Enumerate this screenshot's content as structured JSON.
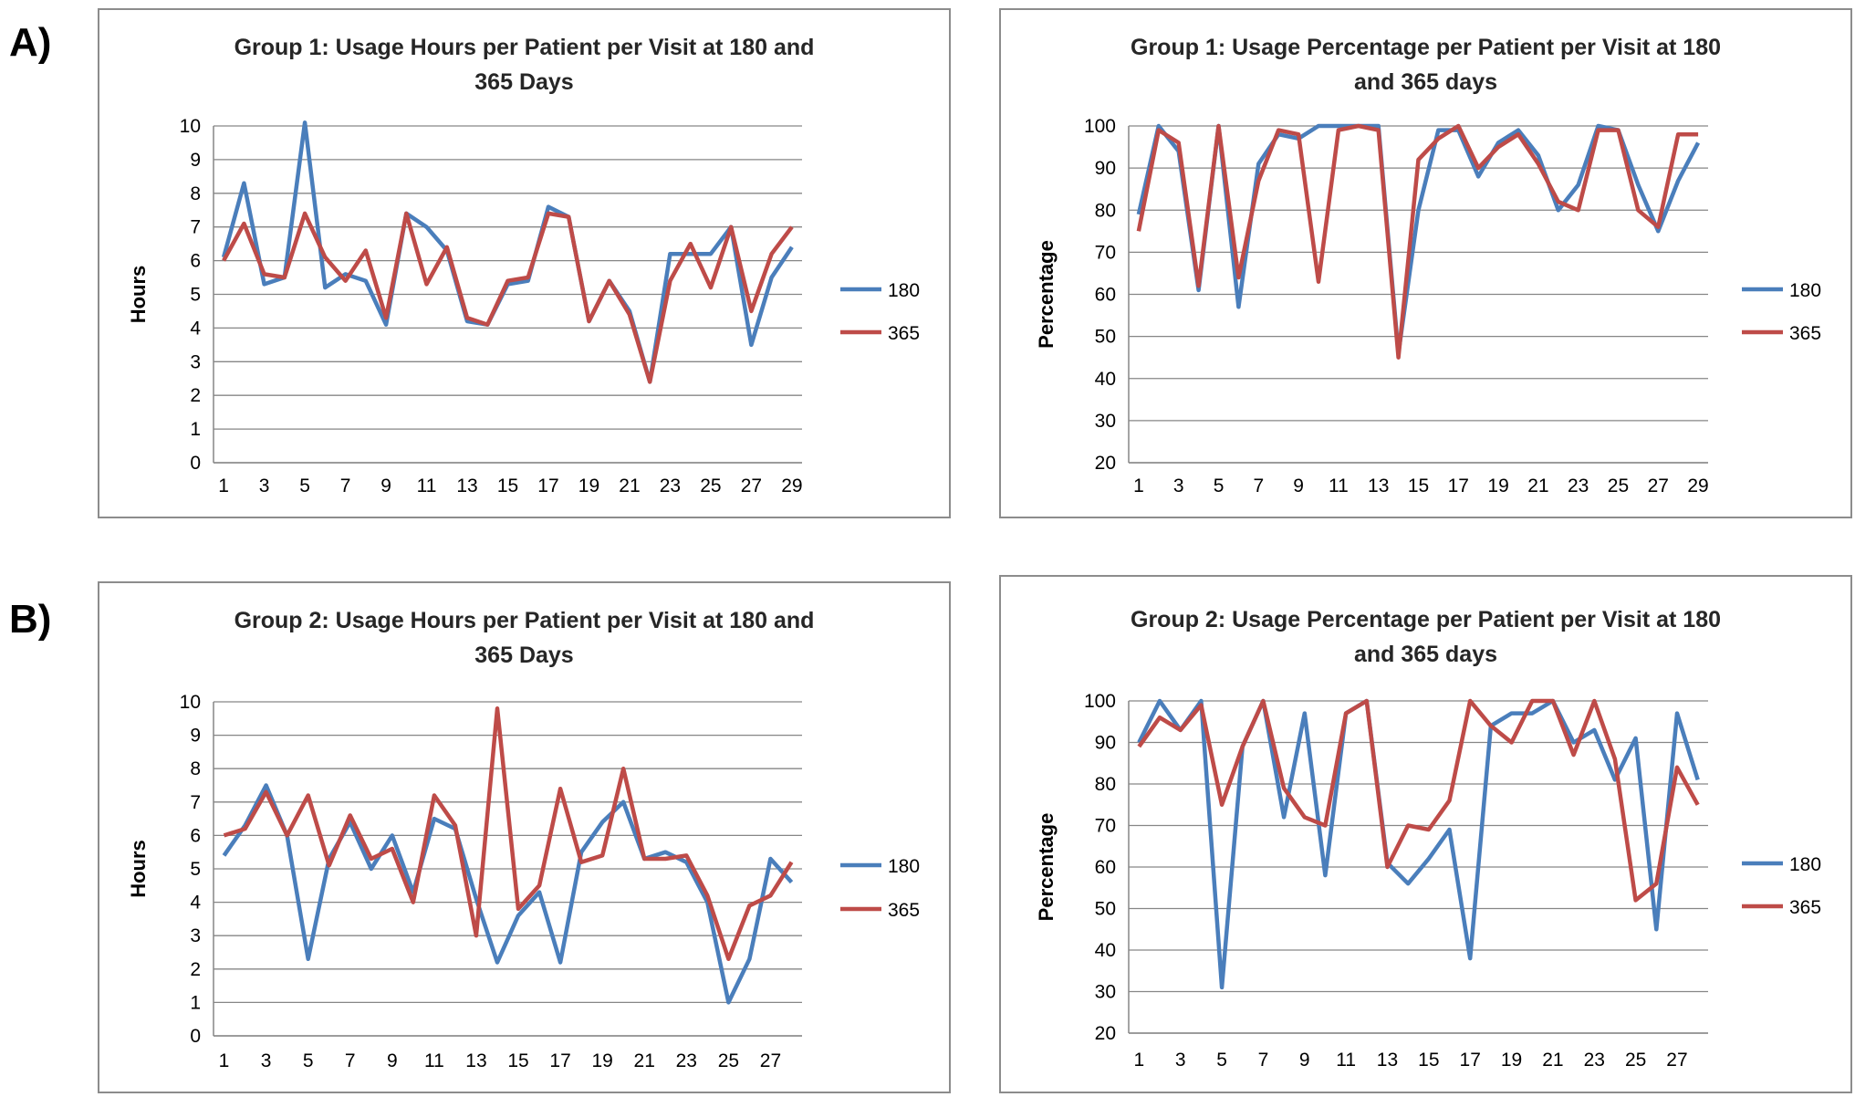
{
  "panel_labels": {
    "a": "A)",
    "b": "B)"
  },
  "colors": {
    "s180": "#4a7ebb",
    "s365": "#be4b48",
    "grid": "#868686"
  },
  "charts": {
    "g1_hours": {
      "title": "Group 1: Usage Hours per Patient per Visit at 180 and\n365 Days",
      "chart_data": {
        "type": "line",
        "title": "Group 1: Usage Hours per Patient per Visit at 180 and 365 Days",
        "ylabel": "Hours",
        "xlabel": "",
        "ylim": [
          0,
          10
        ],
        "yticks": [
          0,
          1,
          2,
          3,
          4,
          5,
          6,
          7,
          8,
          9,
          10
        ],
        "x": [
          1,
          2,
          3,
          4,
          5,
          6,
          7,
          8,
          9,
          10,
          11,
          12,
          13,
          14,
          15,
          16,
          17,
          18,
          19,
          20,
          21,
          22,
          23,
          24,
          25,
          26,
          27,
          28,
          29
        ],
        "xtick_labels": [
          "1",
          "3",
          "5",
          "7",
          "9",
          "11",
          "13",
          "15",
          "17",
          "19",
          "21",
          "23",
          "25",
          "27",
          "29"
        ],
        "legend_position": "right",
        "grid": true,
        "series": [
          {
            "name": "180",
            "values": [
              6.1,
              8.3,
              5.3,
              5.5,
              10.1,
              5.2,
              5.6,
              5.4,
              4.1,
              7.4,
              7.0,
              6.3,
              4.2,
              4.1,
              5.3,
              5.4,
              7.6,
              7.3,
              4.2,
              5.4,
              4.5,
              2.4,
              6.2,
              6.2,
              6.2,
              7.0,
              3.5,
              5.5,
              6.4
            ]
          },
          {
            "name": "365",
            "values": [
              6.0,
              7.1,
              5.6,
              5.5,
              7.4,
              6.1,
              5.4,
              6.3,
              4.3,
              7.4,
              5.3,
              6.4,
              4.3,
              4.1,
              5.4,
              5.5,
              7.4,
              7.3,
              4.2,
              5.4,
              4.4,
              2.4,
              5.4,
              6.5,
              5.2,
              7.0,
              4.5,
              6.2,
              7.0
            ]
          }
        ]
      }
    },
    "g1_pct": {
      "title": "Group 1: Usage Percentage per Patient per Visit at 180\nand 365 days",
      "chart_data": {
        "type": "line",
        "title": "Group 1: Usage Percentage per Patient per Visit at 180 and 365 days",
        "ylabel": "Percentage",
        "xlabel": "",
        "ylim": [
          20,
          100
        ],
        "yticks": [
          20,
          30,
          40,
          50,
          60,
          70,
          80,
          90,
          100
        ],
        "x": [
          1,
          2,
          3,
          4,
          5,
          6,
          7,
          8,
          9,
          10,
          11,
          12,
          13,
          14,
          15,
          16,
          17,
          18,
          19,
          20,
          21,
          22,
          23,
          24,
          25,
          26,
          27,
          28,
          29
        ],
        "xtick_labels": [
          "1",
          "3",
          "5",
          "7",
          "9",
          "11",
          "13",
          "15",
          "17",
          "19",
          "21",
          "23",
          "25",
          "27",
          "29"
        ],
        "legend_position": "right",
        "grid": true,
        "series": [
          {
            "name": "180",
            "values": [
              79,
              100,
              94,
              61,
              100,
              57,
              91,
              98,
              97,
              100,
              100,
              100,
              100,
              46,
              80,
              99,
              99,
              88,
              96,
              99,
              93,
              80,
              86,
              100,
              99,
              86,
              75,
              87,
              96
            ]
          },
          {
            "name": "365",
            "values": [
              75,
              99,
              96,
              62,
              100,
              64,
              87,
              99,
              98,
              63,
              99,
              100,
              99,
              45,
              92,
              97,
              100,
              90,
              95,
              98,
              91,
              82,
              80,
              99,
              99,
              80,
              76,
              98,
              98
            ]
          }
        ]
      }
    },
    "g2_hours": {
      "title": "Group 2: Usage Hours per Patient per Visit at 180 and\n365 Days",
      "chart_data": {
        "type": "line",
        "title": "Group 2: Usage Hours per Patient per Visit at 180 and 365 Days",
        "ylabel": "Hours",
        "xlabel": "",
        "ylim": [
          0,
          10
        ],
        "yticks": [
          0,
          1,
          2,
          3,
          4,
          5,
          6,
          7,
          8,
          9,
          10
        ],
        "x": [
          1,
          2,
          3,
          4,
          5,
          6,
          7,
          8,
          9,
          10,
          11,
          12,
          13,
          14,
          15,
          16,
          17,
          18,
          19,
          20,
          21,
          22,
          23,
          24,
          25,
          26,
          27,
          28
        ],
        "xtick_labels": [
          "1",
          "3",
          "5",
          "7",
          "9",
          "11",
          "13",
          "15",
          "17",
          "19",
          "21",
          "23",
          "25",
          "27"
        ],
        "legend_position": "right",
        "grid": true,
        "series": [
          {
            "name": "180",
            "values": [
              5.4,
              6.3,
              7.5,
              6.0,
              2.3,
              5.3,
              6.4,
              5.0,
              6.0,
              4.3,
              6.5,
              6.2,
              4.1,
              2.2,
              3.6,
              4.3,
              2.2,
              5.5,
              6.4,
              7.0,
              5.3,
              5.5,
              5.2,
              4.0,
              1.0,
              2.3,
              5.3,
              4.6
            ]
          },
          {
            "name": "365",
            "values": [
              6.0,
              6.2,
              7.3,
              6.0,
              7.2,
              5.1,
              6.6,
              5.3,
              5.6,
              4.0,
              7.2,
              6.3,
              3.0,
              9.8,
              3.8,
              4.5,
              7.4,
              5.2,
              5.4,
              8.0,
              5.3,
              5.3,
              5.4,
              4.2,
              2.3,
              3.9,
              4.2,
              5.2
            ]
          }
        ]
      }
    },
    "g2_pct": {
      "title": "Group 2: Usage Percentage per Patient per Visit at 180\nand 365 days",
      "chart_data": {
        "type": "line",
        "title": "Group 2: Usage Percentage per Patient per Visit at 180 and 365 days",
        "ylabel": "Percentage",
        "xlabel": "",
        "ylim": [
          20,
          100
        ],
        "yticks": [
          20,
          30,
          40,
          50,
          60,
          70,
          80,
          90,
          100
        ],
        "x": [
          1,
          2,
          3,
          4,
          5,
          6,
          7,
          8,
          9,
          10,
          11,
          12,
          13,
          14,
          15,
          16,
          17,
          18,
          19,
          20,
          21,
          22,
          23,
          24,
          25,
          26,
          27,
          28
        ],
        "xtick_labels": [
          "1",
          "3",
          "5",
          "7",
          "9",
          "11",
          "13",
          "15",
          "17",
          "19",
          "21",
          "23",
          "25",
          "27"
        ],
        "legend_position": "right",
        "grid": true,
        "series": [
          {
            "name": "180",
            "values": [
              90,
              100,
              93,
              100,
              31,
              89,
              100,
              72,
              97,
              58,
              97,
              100,
              61,
              56,
              62,
              69,
              38,
              94,
              97,
              97,
              100,
              90,
              93,
              81,
              91,
              45,
              97,
              81
            ]
          },
          {
            "name": "365",
            "values": [
              89,
              96,
              93,
              99,
              75,
              89,
              100,
              79,
              72,
              70,
              97,
              100,
              60,
              70,
              69,
              76,
              100,
              94,
              90,
              100,
              100,
              87,
              100,
              86,
              52,
              56,
              84,
              75
            ]
          }
        ]
      }
    }
  }
}
